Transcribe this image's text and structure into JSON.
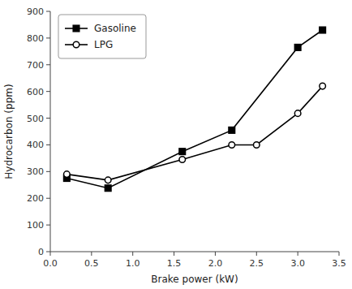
{
  "chart_data": {
    "type": "line",
    "x_label": "Brake power (kW)",
    "y_label": "Hydrocarbon (ppm)",
    "series": [
      {
        "name": "Gasoline",
        "color": "#000000",
        "marker": "square",
        "x": [
          0.2,
          0.7,
          1.6,
          2.2,
          3.0,
          3.3
        ],
        "values": [
          275,
          238,
          375,
          455,
          765,
          830
        ]
      },
      {
        "name": "LPG",
        "color": "#000000",
        "marker": "circle-open",
        "x": [
          0.2,
          0.7,
          1.6,
          2.2,
          2.5,
          3.0,
          3.3
        ],
        "values": [
          290,
          268,
          345,
          400,
          400,
          518,
          620
        ]
      }
    ],
    "xlim": [
      0.0,
      3.5
    ],
    "ylim": [
      0,
      900
    ],
    "xticks": [
      {
        "value": 0.0,
        "label": "0.0"
      },
      0.5,
      {
        "value": 1.0,
        "label": "1.0"
      },
      1.5,
      {
        "value": 2.0,
        "label": "2.0"
      },
      2.5,
      {
        "value": 3.0,
        "label": "3.0"
      },
      3.5
    ],
    "yticks": [
      0,
      100,
      200,
      300,
      400,
      500,
      600,
      700,
      800,
      900
    ],
    "grid": false,
    "legend": "upper left"
  }
}
